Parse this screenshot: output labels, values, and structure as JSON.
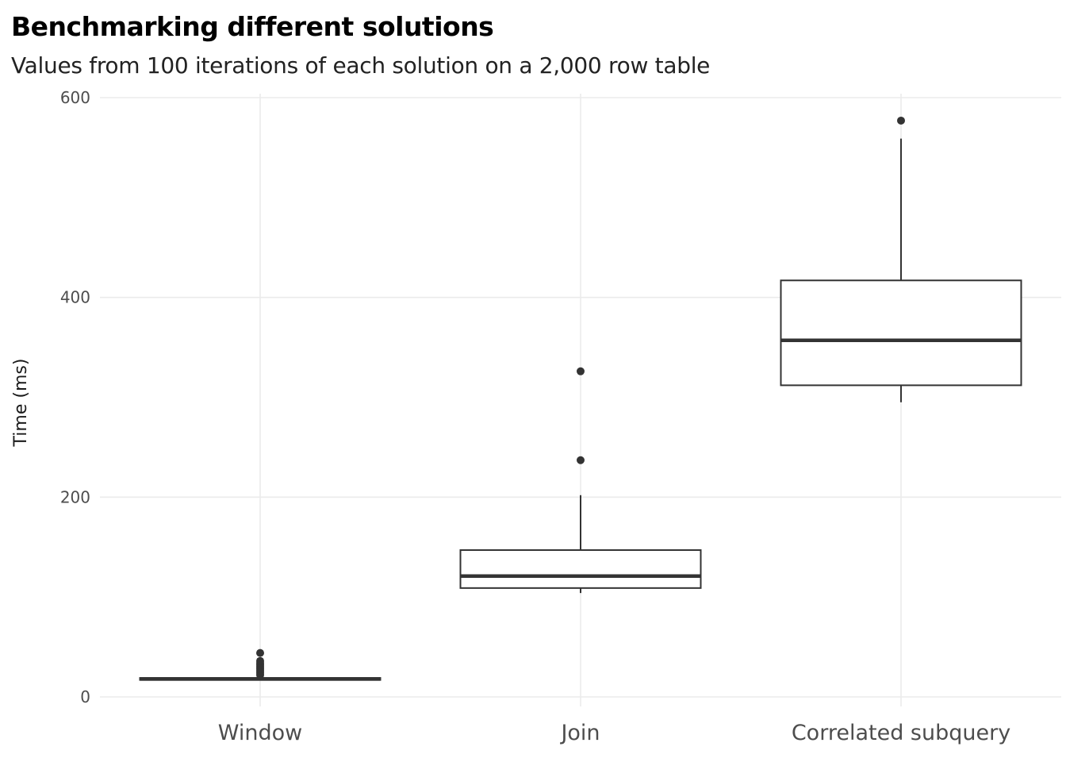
{
  "chart_data": {
    "type": "box",
    "title": "Benchmarking different solutions",
    "subtitle": "Values from 100 iterations of each solution on a 2,000 row table",
    "xlabel": "",
    "ylabel": "Time (ms)",
    "ylim": [
      -2,
      600
    ],
    "yticks": [
      0,
      200,
      400,
      600
    ],
    "grid": true,
    "categories": [
      "Window",
      "Join",
      "Correlated subquery"
    ],
    "boxes": [
      {
        "category": "Window",
        "min": 17,
        "q1": 17,
        "median": 18,
        "q3": 19,
        "max": 20,
        "outliers": [
          22,
          24,
          26,
          28,
          30,
          32,
          34,
          36,
          44
        ]
      },
      {
        "category": "Join",
        "min": 104,
        "q1": 109,
        "median": 121,
        "q3": 147,
        "max": 202,
        "outliers": [
          237,
          326
        ]
      },
      {
        "category": "Correlated subquery",
        "min": 295,
        "q1": 312,
        "median": 357,
        "q3": 417,
        "max": 559,
        "outliers": [
          577
        ]
      }
    ],
    "colors": {
      "grid": "#ebebeb",
      "box": "#333333",
      "text": "#4d4d4d"
    }
  }
}
